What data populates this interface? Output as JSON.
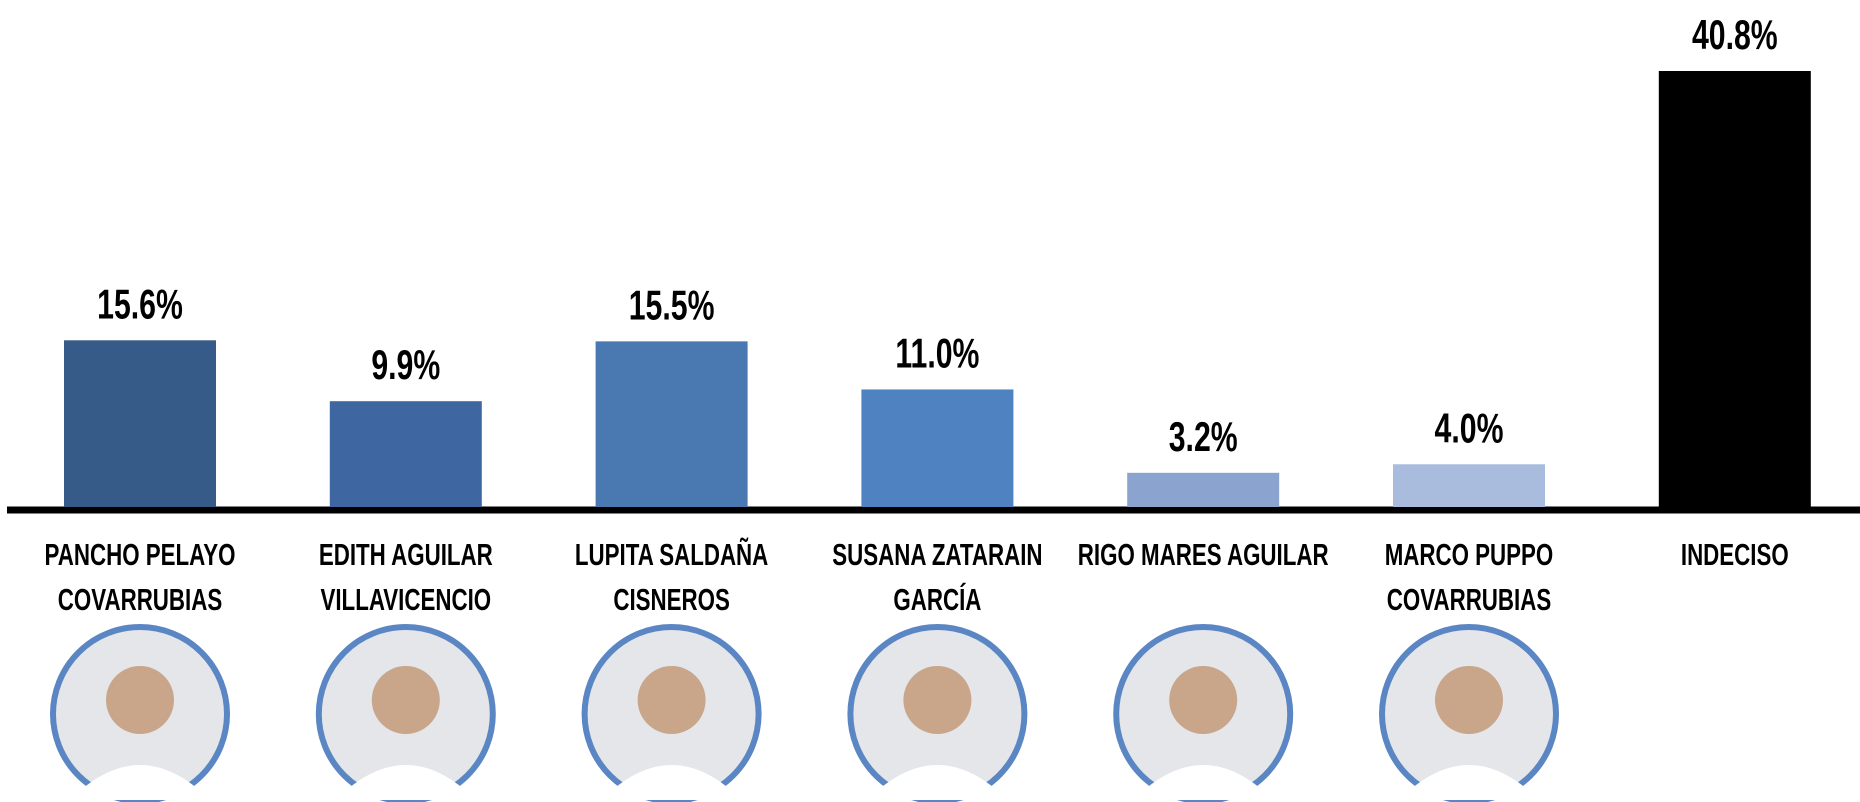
{
  "chart_data": {
    "type": "bar",
    "categories": [
      [
        "PANCHO PELAYO",
        "COVARRUBIAS"
      ],
      [
        "EDITH AGUILAR",
        "VILLAVICENCIO"
      ],
      [
        "LUPITA SALDAÑA",
        "CISNEROS"
      ],
      [
        "SUSANA ZATARAIN",
        "GARCÍA"
      ],
      [
        "RIGO MARES AGUILAR"
      ],
      [
        "MARCO PUPPO",
        "COVARRUBIAS"
      ],
      [
        "INDECISO"
      ]
    ],
    "values": [
      15.6,
      9.9,
      15.5,
      11.0,
      3.2,
      4.0,
      40.8
    ],
    "value_labels": [
      "15.6%",
      "9.9%",
      "15.5%",
      "11.0%",
      "3.2%",
      "4.0%",
      "40.8%"
    ],
    "colors": [
      "#375b88",
      "#3e66a0",
      "#4a78b0",
      "#4e82c0",
      "#8aa3cf",
      "#a9bcdd",
      "#000000"
    ],
    "photos": [
      true,
      true,
      true,
      true,
      true,
      true,
      false
    ]
  }
}
